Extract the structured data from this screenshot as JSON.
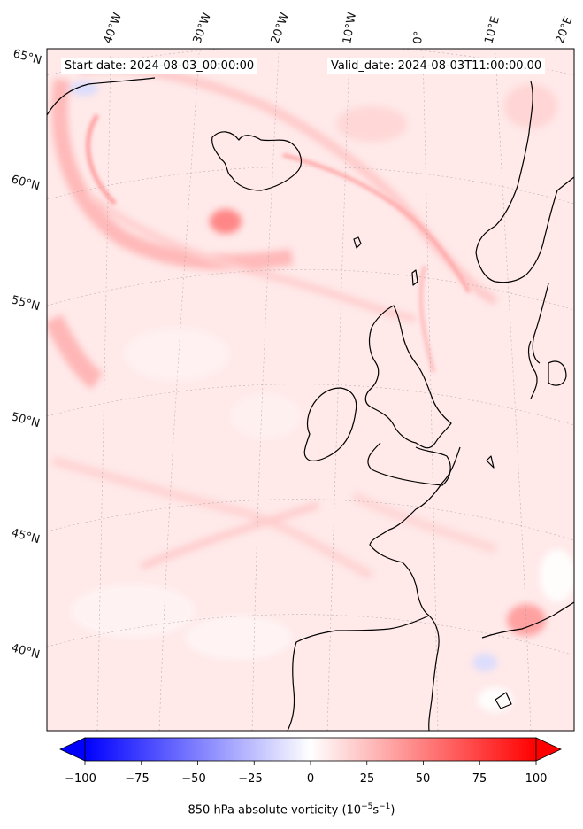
{
  "header": {
    "start_label": "Start date: 2024-08-03_00:00:00",
    "valid_label": "Valid_date: 2024-08-03T11:00:00.00"
  },
  "lon_labels": [
    "40°W",
    "30°W",
    "20°W",
    "10°W",
    "0°",
    "10°E",
    "20°E"
  ],
  "lat_labels": [
    "65°N",
    "60°N",
    "55°N",
    "50°N",
    "45°N",
    "40°N"
  ],
  "colorbar": {
    "min": -100,
    "max": 100,
    "ticks": [
      "−100",
      "−75",
      "−50",
      "−25",
      "0",
      "25",
      "50",
      "75",
      "100"
    ],
    "title_main": "850 hPa absolute vorticity (10",
    "title_exp1": "−5",
    "title_mid": "s",
    "title_exp2": "−1",
    "title_end": ")",
    "low_color": "#0000ff",
    "mid_color": "#ffffff",
    "high_color": "#ff0000"
  },
  "map": {
    "land_outline_color": "#000000",
    "background_color": "#ffe6e6"
  }
}
